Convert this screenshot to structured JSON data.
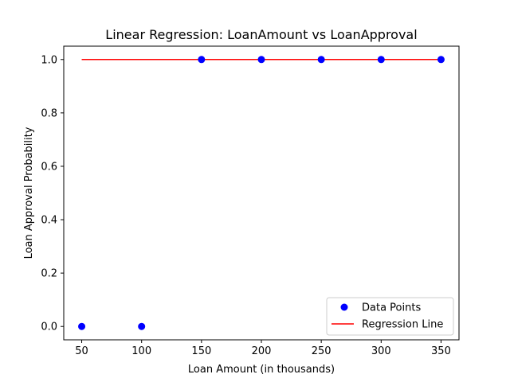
{
  "chart_data": {
    "type": "scatter",
    "title": "Linear Regression: LoanAmount vs LoanApproval",
    "xlabel": "Loan Amount (in thousands)",
    "ylabel": "Loan Approval Probability",
    "xlim": [
      35,
      365
    ],
    "ylim": [
      -0.05,
      1.05
    ],
    "xticks": [
      50,
      100,
      150,
      200,
      250,
      300,
      350
    ],
    "yticks": [
      0.0,
      0.2,
      0.4,
      0.6,
      0.8,
      1.0
    ],
    "xtick_labels": [
      "50",
      "100",
      "150",
      "200",
      "250",
      "300",
      "350"
    ],
    "ytick_labels": [
      "0.0",
      "0.2",
      "0.4",
      "0.6",
      "0.8",
      "1.0"
    ],
    "grid": false,
    "legend_position": "lower-right",
    "series": [
      {
        "name": "Data Points",
        "kind": "scatter",
        "color": "#0000ff",
        "x": [
          50,
          100,
          150,
          200,
          250,
          300,
          350
        ],
        "y": [
          0,
          0,
          1,
          1,
          1,
          1,
          1
        ]
      },
      {
        "name": "Regression Line",
        "kind": "line",
        "color": "#ff0000",
        "x": [
          50,
          100,
          150,
          200,
          250,
          300,
          350
        ],
        "y": [
          1,
          1,
          1,
          1,
          1,
          1,
          1
        ]
      }
    ]
  }
}
